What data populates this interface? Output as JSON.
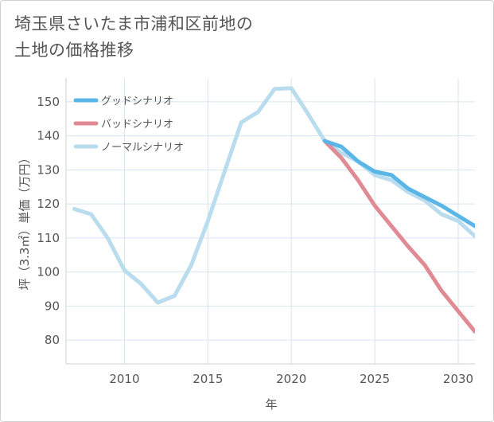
{
  "title_lines": [
    "埼玉県さいたま市浦和区前地の",
    "土地の価格推移"
  ],
  "chart_data": {
    "type": "line",
    "title": "埼玉県さいたま市浦和区前地の土地の価格推移",
    "xlabel": "年",
    "ylabel": "坪（3.3㎡）単価（万円）",
    "xlim": [
      2006.5,
      2031
    ],
    "ylim": [
      73,
      157
    ],
    "x_ticks": [
      2010,
      2015,
      2020,
      2025,
      2030
    ],
    "y_ticks": [
      80,
      90,
      100,
      110,
      120,
      130,
      140,
      150
    ],
    "grid": true,
    "legend_position": "top-left",
    "series": [
      {
        "name": "グッドシナリオ",
        "color": "#5bb6e8",
        "x": [
          2022,
          2023,
          2024,
          2025,
          2026,
          2027,
          2028,
          2029,
          2030,
          2031
        ],
        "y": [
          138.5,
          136.8,
          132.5,
          129.5,
          128.5,
          124.5,
          122,
          119.5,
          116.5,
          113.5
        ]
      },
      {
        "name": "バッドシナリオ",
        "color": "#e08a93",
        "x": [
          2022,
          2023,
          2024,
          2025,
          2026,
          2027,
          2028,
          2029,
          2030,
          2031
        ],
        "y": [
          138.5,
          133.5,
          127,
          119.5,
          113.5,
          107.5,
          102,
          94.5,
          88.5,
          82.5
        ]
      },
      {
        "name": "ノーマルシナリオ",
        "color": "#b9dcee",
        "x": [
          2007,
          2008,
          2009,
          2010,
          2011,
          2012,
          2013,
          2014,
          2015,
          2016,
          2017,
          2018,
          2019,
          2020,
          2021,
          2022,
          2023,
          2024,
          2025,
          2026,
          2027,
          2028,
          2029,
          2030,
          2031
        ],
        "y": [
          118.5,
          117,
          110,
          100.5,
          96.5,
          91,
          93,
          102,
          115,
          129.5,
          144,
          147,
          153.8,
          154,
          146.5,
          138.5,
          135,
          132.5,
          128.5,
          127,
          123.5,
          121,
          117,
          115,
          110.5
        ]
      }
    ]
  }
}
